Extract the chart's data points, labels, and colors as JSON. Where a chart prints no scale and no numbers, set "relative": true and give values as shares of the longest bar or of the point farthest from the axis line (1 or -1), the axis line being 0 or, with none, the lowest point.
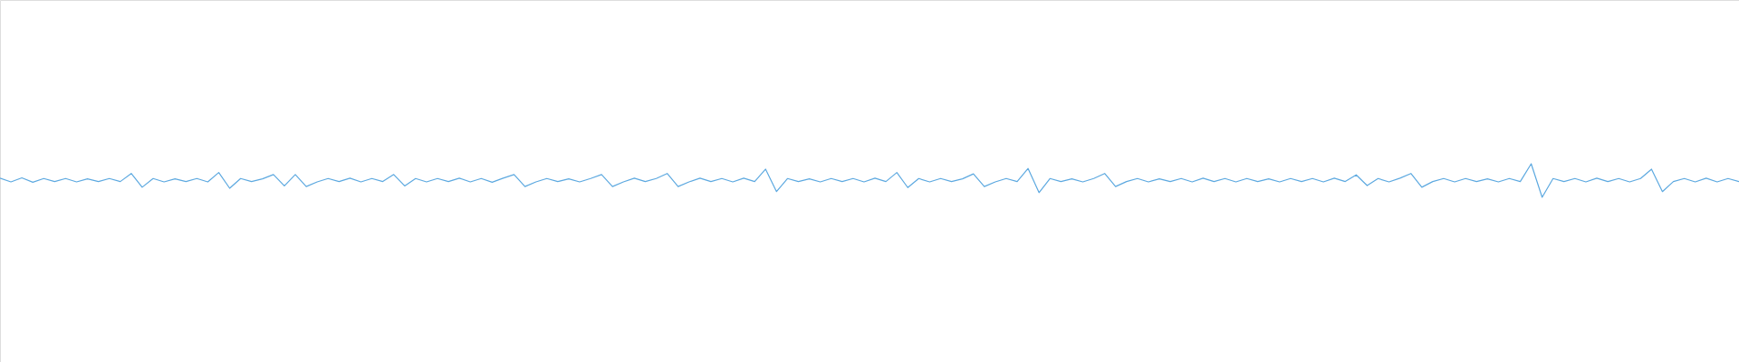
{
  "chart_data": {
    "type": "line",
    "relative": true,
    "categories": [
      null,
      null,
      null,
      null,
      null,
      null,
      null,
      null,
      null,
      null,
      null,
      null,
      null,
      null,
      null,
      null,
      null,
      null,
      null,
      null,
      null,
      null,
      null,
      null,
      null,
      null,
      null,
      null,
      null,
      null,
      null,
      null,
      null,
      null,
      null,
      null,
      null,
      null,
      null,
      null,
      null,
      null,
      null,
      null,
      null,
      null,
      null,
      null,
      null,
      null,
      null,
      null,
      null,
      null,
      null,
      null,
      null,
      null,
      null,
      null,
      null,
      null,
      null,
      null,
      null,
      null,
      null,
      null,
      null,
      null,
      null,
      null,
      null,
      null,
      null,
      null,
      null,
      null,
      null,
      null,
      null,
      null,
      null,
      null,
      null,
      null,
      null,
      null,
      null,
      null,
      null,
      null,
      null,
      null,
      null,
      null,
      null,
      null,
      null,
      null,
      null,
      null,
      null,
      null,
      null,
      null,
      null,
      null,
      null,
      null,
      null,
      null,
      null,
      null,
      null,
      null,
      null,
      null,
      null,
      null,
      null,
      null,
      null,
      null,
      null,
      null,
      null,
      null,
      null,
      null,
      null,
      null,
      null,
      null,
      null,
      null,
      null,
      null,
      null,
      null,
      null,
      null,
      null,
      null,
      null,
      null,
      null,
      null,
      null,
      null,
      null,
      null,
      null,
      null,
      null,
      null,
      null,
      null,
      null,
      null
    ],
    "series": [
      {
        "color": "#5da9e0",
        "values": [
          0.57,
          0.46,
          0.58,
          0.45,
          0.56,
          0.47,
          0.56,
          0.46,
          0.55,
          0.47,
          0.56,
          0.47,
          0.71,
          0.3,
          0.56,
          0.46,
          0.55,
          0.47,
          0.56,
          0.46,
          0.74,
          0.27,
          0.56,
          0.47,
          0.55,
          0.68,
          0.34,
          0.68,
          0.32,
          0.46,
          0.56,
          0.47,
          0.57,
          0.46,
          0.56,
          0.47,
          0.68,
          0.34,
          0.56,
          0.46,
          0.56,
          0.47,
          0.57,
          0.46,
          0.56,
          0.45,
          0.57,
          0.68,
          0.32,
          0.46,
          0.56,
          0.47,
          0.55,
          0.46,
          0.56,
          0.68,
          0.32,
          0.46,
          0.57,
          0.47,
          0.56,
          0.71,
          0.32,
          0.46,
          0.57,
          0.47,
          0.56,
          0.46,
          0.57,
          0.47,
          0.84,
          0.17,
          0.56,
          0.47,
          0.55,
          0.46,
          0.56,
          0.47,
          0.56,
          0.46,
          0.57,
          0.47,
          0.74,
          0.29,
          0.56,
          0.46,
          0.56,
          0.47,
          0.55,
          0.7,
          0.32,
          0.46,
          0.56,
          0.47,
          0.86,
          0.14,
          0.56,
          0.47,
          0.55,
          0.46,
          0.56,
          0.71,
          0.32,
          0.47,
          0.56,
          0.46,
          0.55,
          0.47,
          0.56,
          0.46,
          0.57,
          0.47,
          0.56,
          0.46,
          0.56,
          0.47,
          0.55,
          0.46,
          0.56,
          0.47,
          0.56,
          0.46,
          0.57,
          0.47,
          0.67,
          0.35,
          0.56,
          0.46,
          0.57,
          0.71,
          0.3,
          0.47,
          0.56,
          0.46,
          0.56,
          0.47,
          0.55,
          0.46,
          0.56,
          0.47,
          1.0,
          0,
          0.56,
          0.47,
          0.56,
          0.46,
          0.57,
          0.47,
          0.56,
          0.46,
          0.56,
          0.84,
          0.17,
          0.47,
          0.56,
          0.46,
          0.57,
          0.46,
          0.56,
          0.47
        ]
      }
    ]
  }
}
